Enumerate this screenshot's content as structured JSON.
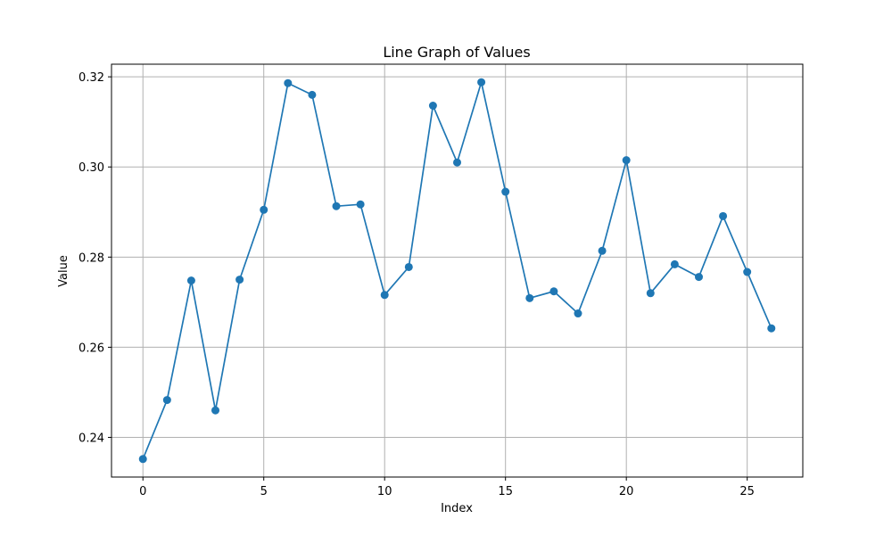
{
  "chart_data": {
    "type": "line",
    "title": "Line Graph of Values",
    "xlabel": "Index",
    "ylabel": "Value",
    "xlim": [
      -1.3,
      27.3
    ],
    "ylim": [
      0.2312,
      0.3228
    ],
    "xticks": [
      0,
      5,
      10,
      15,
      20,
      25
    ],
    "yticks": [
      0.24,
      0.26,
      0.28,
      0.3,
      0.32
    ],
    "ytick_labels": [
      "0.24",
      "0.26",
      "0.28",
      "0.30",
      "0.32"
    ],
    "grid": true,
    "marker": "circle",
    "color": "#1f77b4",
    "series": [
      {
        "x": [
          0,
          1,
          2,
          3,
          4,
          5,
          6,
          7,
          8,
          9,
          10,
          11,
          12,
          13,
          14,
          15,
          16,
          17,
          18,
          19,
          20,
          21,
          22,
          23,
          24,
          25,
          26
        ],
        "values": [
          0.2352,
          0.2483,
          0.2748,
          0.246,
          0.275,
          0.2905,
          0.3186,
          0.316,
          0.2913,
          0.2917,
          0.2716,
          0.2778,
          0.3136,
          0.301,
          0.3188,
          0.2945,
          0.2709,
          0.2724,
          0.2675,
          0.2814,
          0.3015,
          0.272,
          0.2784,
          0.2756,
          0.2891,
          0.2767,
          0.2642
        ]
      }
    ]
  }
}
